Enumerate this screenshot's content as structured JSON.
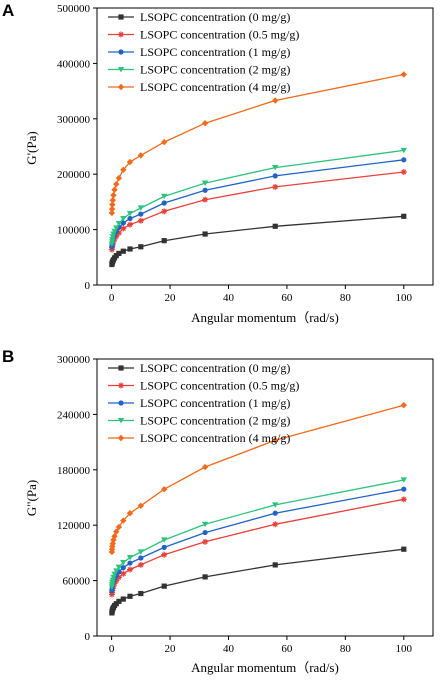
{
  "chart_data": [
    {
      "type": "line",
      "panel_label": "A",
      "xlabel": "Angular momentum（rad/s)",
      "ylabel": "G'(Pa)",
      "xlim": [
        -5,
        110
      ],
      "ylim": [
        0,
        500000
      ],
      "x_ticks": [
        0,
        20,
        40,
        60,
        80,
        100
      ],
      "y_ticks": [
        0,
        100000,
        200000,
        300000,
        400000,
        500000
      ],
      "legend_position": "top-left",
      "series": [
        {
          "name": "LSOPC concentration (0 mg/g)",
          "color": "#333333",
          "marker": "square",
          "x": [
            0.1,
            0.16,
            0.25,
            0.4,
            0.63,
            1,
            1.6,
            2.5,
            4,
            6.3,
            10,
            18,
            32,
            56,
            100
          ],
          "y": [
            37000,
            39000,
            41000,
            43000,
            45500,
            49000,
            53000,
            57000,
            61000,
            65000,
            69000,
            80000,
            92000,
            106000,
            124000
          ]
        },
        {
          "name": "LSOPC concentration (0.5 mg/g)",
          "color": "#e8413a",
          "marker": "star",
          "x": [
            0.1,
            0.16,
            0.25,
            0.4,
            0.63,
            1,
            1.6,
            2.5,
            4,
            6.3,
            10,
            18,
            32,
            56,
            100
          ],
          "y": [
            64000,
            67000,
            70000,
            74000,
            78000,
            83000,
            88000,
            94000,
            102000,
            109000,
            116000,
            133000,
            154000,
            177000,
            204000
          ]
        },
        {
          "name": "LSOPC concentration (1 mg/g)",
          "color": "#1f63c6",
          "marker": "circle",
          "x": [
            0.1,
            0.16,
            0.25,
            0.4,
            0.63,
            1,
            1.6,
            2.5,
            4,
            6.3,
            10,
            18,
            32,
            56,
            100
          ],
          "y": [
            69000,
            73000,
            77000,
            81000,
            86000,
            91000,
            97000,
            104000,
            112000,
            120000,
            128000,
            148000,
            171000,
            197000,
            226000
          ]
        },
        {
          "name": "LSOPC concentration (2 mg/g)",
          "color": "#2ec27e",
          "marker": "triangle-down",
          "x": [
            0.1,
            0.16,
            0.25,
            0.4,
            0.63,
            1,
            1.6,
            2.5,
            4,
            6.3,
            10,
            18,
            32,
            56,
            100
          ],
          "y": [
            74000,
            78000,
            82000,
            87000,
            92000,
            97000,
            103000,
            111000,
            120000,
            129000,
            139000,
            160000,
            184000,
            212000,
            243000
          ]
        },
        {
          "name": "LSOPC concentration (4 mg/g)",
          "color": "#f26a1b",
          "marker": "diamond",
          "x": [
            0.1,
            0.16,
            0.25,
            0.4,
            0.63,
            1,
            1.6,
            2.5,
            4,
            6.3,
            10,
            18,
            32,
            56,
            100
          ],
          "y": [
            130000,
            137000,
            145000,
            153000,
            162000,
            172000,
            182000,
            193000,
            208000,
            222000,
            234000,
            258000,
            292000,
            333000,
            380000
          ]
        }
      ]
    },
    {
      "type": "line",
      "panel_label": "B",
      "xlabel": "Angular momentum（rad/s)",
      "ylabel": "G\"(Pa)",
      "xlim": [
        -5,
        110
      ],
      "ylim": [
        0,
        300000
      ],
      "x_ticks": [
        0,
        20,
        40,
        60,
        80,
        100
      ],
      "y_ticks": [
        0,
        60000,
        120000,
        180000,
        240000,
        300000
      ],
      "legend_position": "top-left",
      "series": [
        {
          "name": "LSOPC concentration (0 mg/g)",
          "color": "#333333",
          "marker": "square",
          "x": [
            0.1,
            0.16,
            0.25,
            0.4,
            0.63,
            1,
            1.6,
            2.5,
            4,
            6.3,
            10,
            18,
            32,
            56,
            100
          ],
          "y": [
            25000,
            26500,
            28000,
            29500,
            31000,
            33000,
            35000,
            37500,
            40000,
            43000,
            46000,
            54000,
            64000,
            77000,
            94000
          ]
        },
        {
          "name": "LSOPC concentration (0.5 mg/g)",
          "color": "#e8413a",
          "marker": "star",
          "x": [
            0.1,
            0.16,
            0.25,
            0.4,
            0.63,
            1,
            1.6,
            2.5,
            4,
            6.3,
            10,
            18,
            32,
            56,
            100
          ],
          "y": [
            45000,
            47000,
            49000,
            51500,
            54000,
            57000,
            60000,
            63500,
            67500,
            72000,
            77000,
            88000,
            102000,
            121000,
            148000
          ]
        },
        {
          "name": "LSOPC concentration (1 mg/g)",
          "color": "#1f63c6",
          "marker": "circle",
          "x": [
            0.1,
            0.16,
            0.25,
            0.4,
            0.63,
            1,
            1.6,
            2.5,
            4,
            6.3,
            10,
            18,
            32,
            56,
            100
          ],
          "y": [
            49000,
            51000,
            53500,
            56000,
            59000,
            62000,
            65500,
            69500,
            74000,
            79000,
            84500,
            96000,
            112000,
            133000,
            159000
          ]
        },
        {
          "name": "LSOPC concentration (2 mg/g)",
          "color": "#2ec27e",
          "marker": "triangle-down",
          "x": [
            0.1,
            0.16,
            0.25,
            0.4,
            0.63,
            1,
            1.6,
            2.5,
            4,
            6.3,
            10,
            18,
            32,
            56,
            100
          ],
          "y": [
            53000,
            55500,
            58000,
            60500,
            63500,
            67000,
            70500,
            74500,
            79500,
            85000,
            91000,
            104000,
            121000,
            142000,
            169000
          ]
        },
        {
          "name": "LSOPC concentration (4 mg/g)",
          "color": "#f26a1b",
          "marker": "diamond",
          "x": [
            0.1,
            0.16,
            0.25,
            0.4,
            0.63,
            1,
            1.6,
            2.5,
            4,
            6.3,
            10,
            18,
            32,
            56,
            100
          ],
          "y": [
            91000,
            94000,
            97000,
            100000,
            104000,
            108000,
            113000,
            118000,
            125000,
            133000,
            141000,
            159000,
            183000,
            212000,
            250000
          ]
        }
      ]
    }
  ]
}
